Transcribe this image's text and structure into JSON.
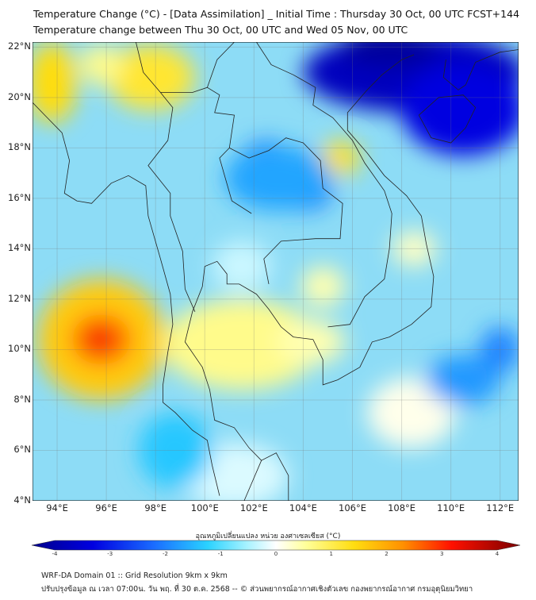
{
  "header": {
    "title": "Temperature Change (°C) - [Data Assimilation] _ Initial Time : Thursday 30 Oct, 00 UTC FCST+144",
    "subtitle": "Temperature change between Thu 30 Oct, 00 UTC and Wed 05 Nov, 00 UTC"
  },
  "map": {
    "extent": {
      "lon": [
        93.0,
        112.75
      ],
      "lat": [
        4.0,
        22.2
      ]
    },
    "lat_ticks": [
      {
        "v": 22,
        "label": "22°N"
      },
      {
        "v": 20,
        "label": "20°N"
      },
      {
        "v": 18,
        "label": "18°N"
      },
      {
        "v": 16,
        "label": "16°N"
      },
      {
        "v": 14,
        "label": "14°N"
      },
      {
        "v": 12,
        "label": "12°N"
      },
      {
        "v": 10,
        "label": "10°N"
      },
      {
        "v": 8,
        "label": "8°N"
      },
      {
        "v": 6,
        "label": "6°N"
      },
      {
        "v": 4,
        "label": "4°N"
      }
    ],
    "lon_ticks": [
      {
        "v": 94,
        "label": "94°E"
      },
      {
        "v": 96,
        "label": "96°E"
      },
      {
        "v": 98,
        "label": "98°E"
      },
      {
        "v": 100,
        "label": "100°E"
      },
      {
        "v": 102,
        "label": "102°E"
      },
      {
        "v": 104,
        "label": "104°E"
      },
      {
        "v": 106,
        "label": "106°E"
      },
      {
        "v": 108,
        "label": "108°E"
      },
      {
        "v": 110,
        "label": "110°E"
      },
      {
        "v": 112,
        "label": "112°E"
      }
    ],
    "field": [
      {
        "lon": 95.8,
        "lat": 10.4,
        "rlon": 2.6,
        "rlat": 2.4,
        "value": 1.5
      },
      {
        "lon": 95.8,
        "lat": 10.4,
        "rlon": 1.2,
        "rlat": 1.0,
        "value": 2.4
      },
      {
        "lon": 95.7,
        "lat": 10.4,
        "rlon": 0.5,
        "rlat": 0.45,
        "value": 3.0
      },
      {
        "lon": 93.8,
        "lat": 20.6,
        "rlon": 1.0,
        "rlat": 1.6,
        "value": 1.3
      },
      {
        "lon": 97.8,
        "lat": 20.8,
        "rlon": 1.8,
        "rlat": 1.3,
        "value": 1.1
      },
      {
        "lon": 95.8,
        "lat": 21.3,
        "rlon": 0.9,
        "rlat": 0.8,
        "value": 0.6
      },
      {
        "lon": 101.5,
        "lat": 10.2,
        "rlon": 3.2,
        "rlat": 1.8,
        "value": 0.6
      },
      {
        "lon": 104.3,
        "lat": 10.3,
        "rlon": 1.4,
        "rlat": 0.9,
        "value": 0.4
      },
      {
        "lon": 105.5,
        "lat": 17.6,
        "rlon": 0.8,
        "rlat": 0.7,
        "value": 1.2
      },
      {
        "lon": 104.8,
        "lat": 12.5,
        "rlon": 0.9,
        "rlat": 0.8,
        "value": 0.4
      },
      {
        "lon": 108.5,
        "lat": 14.0,
        "rlon": 0.9,
        "rlat": 0.7,
        "value": 0.3
      },
      {
        "lon": 108.4,
        "lat": 7.5,
        "rlon": 1.8,
        "rlat": 1.4,
        "value": 0.1
      },
      {
        "lon": 101.5,
        "lat": 13.3,
        "rlon": 1.2,
        "rlat": 1.0,
        "value": -0.3
      },
      {
        "lon": 101.2,
        "lat": 5.0,
        "rlon": 2.2,
        "rlat": 1.3,
        "value": -0.2
      },
      {
        "lon": 108.5,
        "lat": 21.0,
        "rlon": 4.5,
        "rlat": 1.6,
        "value": -3.4
      },
      {
        "lon": 110.5,
        "lat": 19.5,
        "rlon": 2.5,
        "rlat": 1.8,
        "value": -3.0
      },
      {
        "lon": 107.5,
        "lat": 22.0,
        "rlon": 2.0,
        "rlat": 0.8,
        "value": -3.8
      },
      {
        "lon": 102.5,
        "lat": 17.5,
        "rlon": 1.0,
        "rlat": 0.8,
        "value": -2.0
      },
      {
        "lon": 104.0,
        "lat": 16.3,
        "rlon": 1.2,
        "rlat": 0.8,
        "value": -2.0
      },
      {
        "lon": 103.0,
        "lat": 16.8,
        "rlon": 2.2,
        "rlat": 1.3,
        "value": -1.5
      },
      {
        "lon": 110.5,
        "lat": 8.8,
        "rlon": 1.5,
        "rlat": 1.0,
        "value": -1.6
      },
      {
        "lon": 112.0,
        "lat": 10.0,
        "rlon": 0.8,
        "rlat": 0.9,
        "value": -1.8
      },
      {
        "lon": 98.8,
        "lat": 6.0,
        "rlon": 1.5,
        "rlat": 1.5,
        "value": -1.2
      }
    ]
  },
  "colorbar": {
    "label": "อุณหภูมิเปลี่ยนแปลง หน่วย องศาเซลเซียส (°C)",
    "min": -4,
    "max": 4,
    "ticks": [
      "-4",
      "-3",
      "-2",
      "-1",
      "0",
      "1",
      "2",
      "3",
      "4"
    ]
  },
  "footer": {
    "line1": "WRF-DA Domain 01 :: Grid Resolution 9km x 9km",
    "line2": "ปรับปรุงข้อมูล ณ เวลา 07:00น. วัน พฤ. ที่ 30 ต.ค. 2568 -- © ส่วนพยากรณ์อากาศเชิงตัวเลข กองพยากรณ์อากาศ กรมอุตุนิยมวิทยา"
  }
}
